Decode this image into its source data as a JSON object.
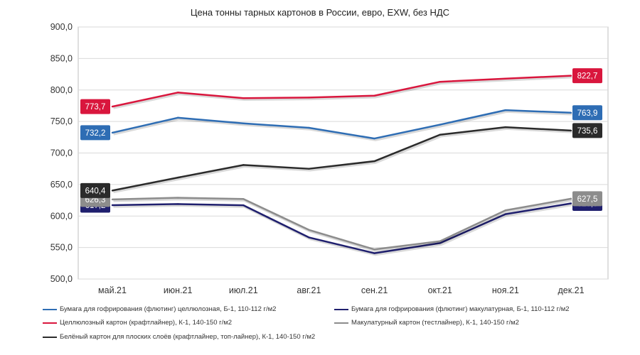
{
  "chart_data": {
    "type": "line",
    "title": "Цена тонны тарных картонов в России, евро, EXW, без НДС",
    "categories": [
      "май.21",
      "июн.21",
      "июл.21",
      "авг.21",
      "сен.21",
      "окт.21",
      "ноя.21",
      "дек.21"
    ],
    "ylim": [
      500,
      900
    ],
    "yticks": [
      "500,0",
      "550,0",
      "600,0",
      "650,0",
      "700,0",
      "750,0",
      "800,0",
      "850,0",
      "900,0"
    ],
    "grid": true,
    "legend_position": "bottom",
    "series": [
      {
        "name": "Бумага для гофрирования (флютинг) целлюлозная, Б-1, 110-112 г/м2",
        "color": "#2e6db4",
        "values": [
          732.2,
          756,
          747,
          740,
          723,
          745,
          768,
          763.9
        ],
        "first_label": "732,2",
        "last_label": "763,9"
      },
      {
        "name": "Бумага для гофрирования (флютинг) макулатурная, Б-1, 110-112 г/м2",
        "color": "#1f1f6e",
        "values": [
          617.2,
          619,
          617,
          566,
          541,
          557,
          603,
          620.0
        ],
        "first_label": "617,2",
        "last_label": "620,0"
      },
      {
        "name": "Целлюлозный картон (крафтлайнер), К-1, 140-150 г/м2",
        "color": "#d9163d",
        "values": [
          773.7,
          796,
          787,
          788,
          791,
          813,
          818,
          822.7
        ],
        "first_label": "773,7",
        "last_label": "822,7"
      },
      {
        "name": "Макулатурный картон (тестлайнер), К-1, 140-150 г/м2",
        "color": "#8c8c8c",
        "values": [
          626.3,
          629,
          627,
          578,
          547,
          560,
          609,
          627.5
        ],
        "first_label": "626,3",
        "last_label": "627,5"
      },
      {
        "name": "Белёный картон для плоских слоёв (крафтлайнер, топ-лайнер), К-1, 140-150 г/м2",
        "color": "#2b2b2b",
        "values": [
          640.4,
          661,
          681,
          675,
          687,
          729,
          741,
          735.6
        ],
        "first_label": "640,4",
        "last_label": "735,6"
      }
    ]
  }
}
